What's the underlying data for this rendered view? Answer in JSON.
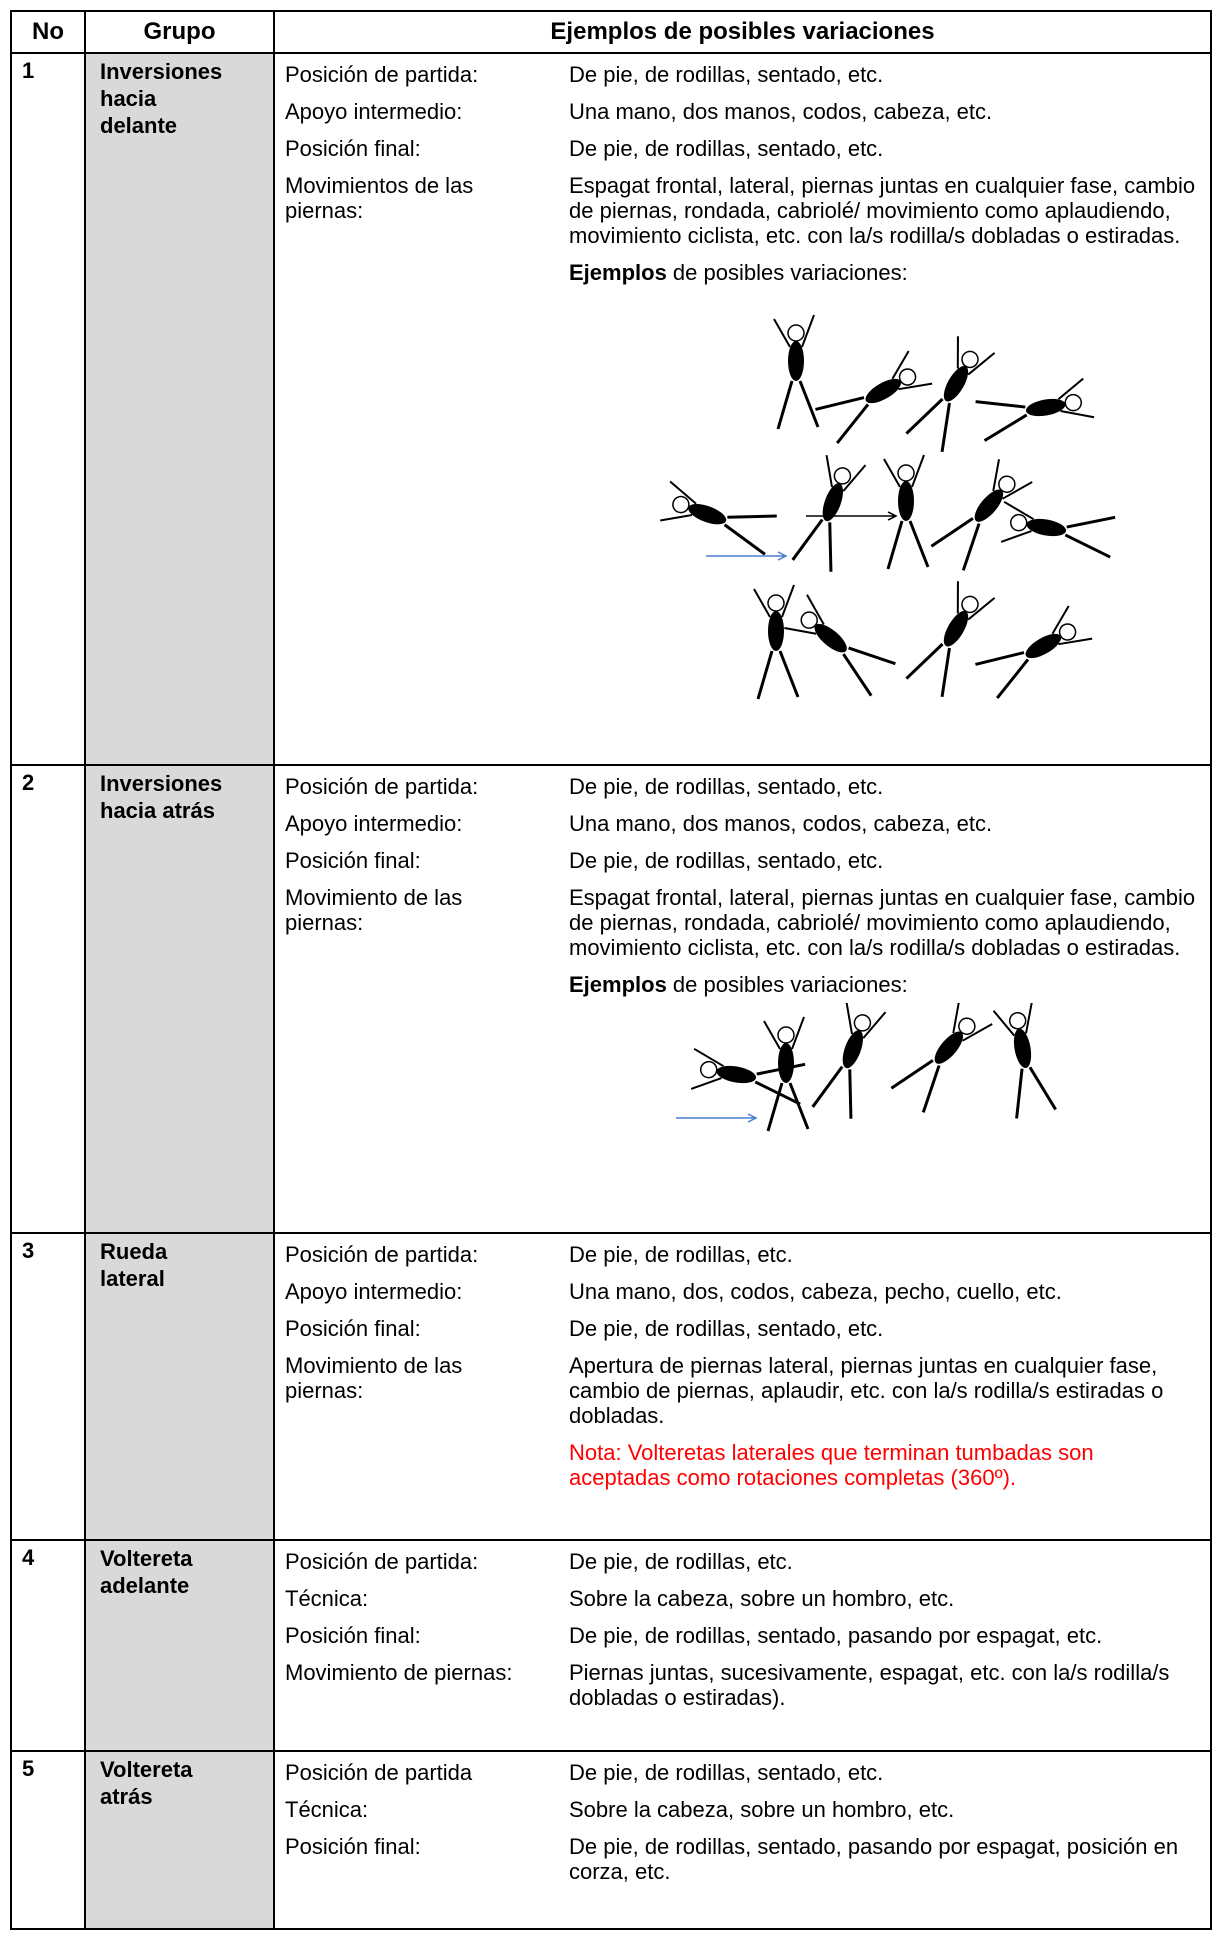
{
  "header": [
    "No",
    "Grupo",
    "Ejemplos de posibles variaciones"
  ],
  "rows": [
    {
      "no": "1",
      "group": [
        "Inversiones",
        "hacia",
        "delante"
      ],
      "items": [
        [
          "Posición de partida:",
          "De pie, de rodillas, sentado, etc."
        ],
        [
          "Apoyo intermedio:",
          "Una mano, dos manos, codos, cabeza, etc."
        ],
        [
          "Posición final:",
          "De pie, de rodillas, sentado, etc."
        ],
        [
          "Movimientos de las piernas:",
          "Espagat frontal, lateral, piernas juntas en cualquier fase, cambio de piernas, rondada, cabriolé/ movimiento como aplaudiendo, movimiento ciclista, etc. con la/s rodilla/s dobladas o estiradas."
        ]
      ],
      "examples": {
        "bold": "Ejemplos",
        "rest": " de posibles variaciones:"
      }
    },
    {
      "no": "2",
      "group": [
        "Inversiones",
        "hacia atrás"
      ],
      "items": [
        [
          "Posición de partida:",
          "De pie, de rodillas, sentado, etc."
        ],
        [
          "Apoyo intermedio:",
          "Una mano, dos manos, codos, cabeza, etc."
        ],
        [
          "Posición final:",
          "De pie, de rodillas, sentado, etc."
        ],
        [
          "Movimiento de las piernas:",
          "Espagat frontal, lateral, piernas juntas en cualquier fase, cambio de piernas, rondada, cabriolé/ movimiento como aplaudiendo, movimiento ciclista, etc. con la/s rodilla/s dobladas o estiradas."
        ]
      ],
      "examples": {
        "bold": "Ejemplos",
        "rest": " de posibles variaciones:"
      }
    },
    {
      "no": "3",
      "group": [
        "Rueda",
        "lateral"
      ],
      "items": [
        [
          "Posición de partida:",
          "De pie, de rodillas, etc."
        ],
        [
          "Apoyo intermedio:",
          "Una mano, dos, codos, cabeza, pecho, cuello, etc."
        ],
        [
          "Posición final:",
          "De pie, de rodillas, sentado, etc."
        ],
        [
          "Movimiento de las piernas:",
          "Apertura de piernas lateral, piernas juntas en cualquier fase, cambio de piernas, aplaudir, etc. con la/s rodilla/s estiradas o dobladas."
        ]
      ],
      "note": "Nota: Volteretas laterales que terminan tumbadas son aceptadas como rotaciones completas (360º)."
    },
    {
      "no": "4",
      "group": [
        "Voltereta",
        "adelante"
      ],
      "items": [
        [
          "Posición de partida:",
          "De pie, de rodillas, etc."
        ],
        [
          "Técnica:",
          "Sobre la cabeza, sobre un hombro, etc."
        ],
        [
          "Posición final:",
          "De pie, de rodillas, sentado, pasando por espagat, etc."
        ],
        [
          "Movimiento de piernas:",
          "Piernas juntas, sucesivamente, espagat, etc. con la/s rodilla/s dobladas o estiradas)."
        ]
      ]
    },
    {
      "no": "5",
      "group": [
        "Voltereta",
        "atrás"
      ],
      "items": [
        [
          "Posición de partida",
          "De pie, de rodillas, sentado, etc."
        ],
        [
          "Técnica:",
          "Sobre la cabeza, sobre un hombro, etc."
        ],
        [
          "Posición final:",
          "De pie, de rodillas, sentado, pasando por espagat, posición en corza, etc."
        ]
      ]
    }
  ]
}
